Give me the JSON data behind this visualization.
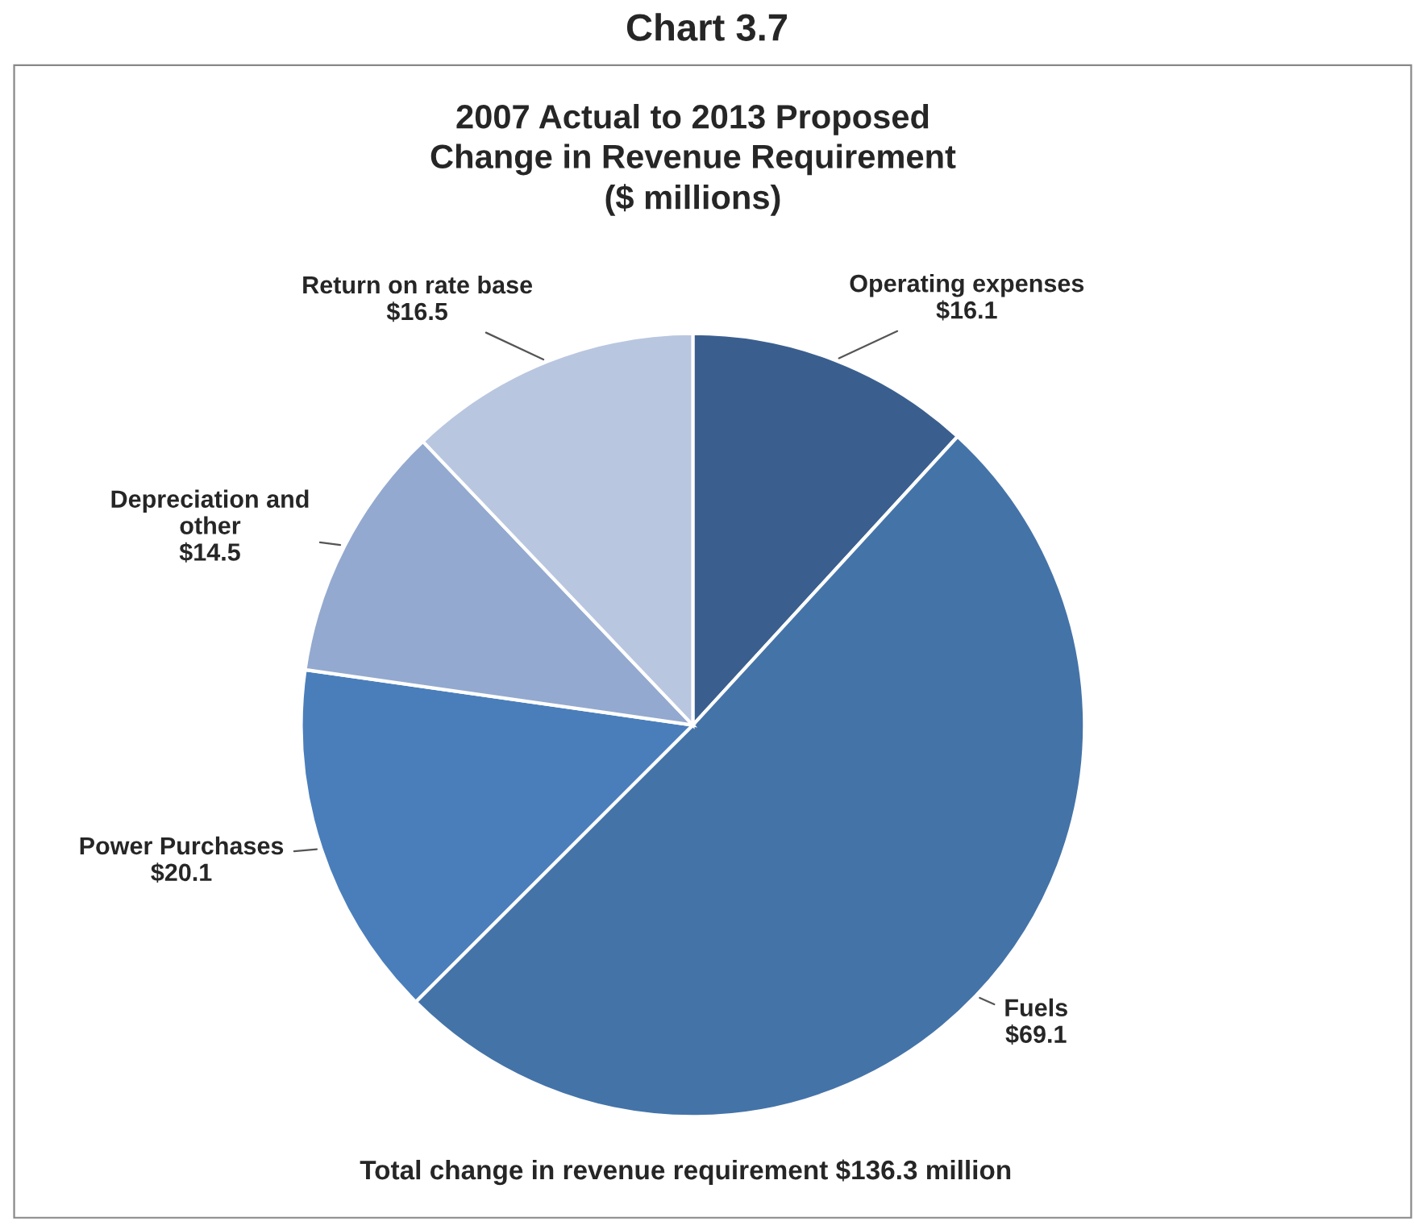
{
  "chart_data": {
    "type": "pie",
    "title": "Chart 3.7",
    "subtitle": "2007 Actual to 2013 Proposed\nChange in Revenue Requirement\n($ millions)",
    "categories": [
      "Operating expenses",
      "Fuels",
      "Power Purchases",
      "Depreciation and\nother",
      "Return on rate base"
    ],
    "values": [
      16.1,
      69.1,
      20.1,
      14.5,
      16.5
    ],
    "value_labels": [
      "$16.1",
      "$69.1",
      "$20.1",
      "$14.5",
      "$16.5"
    ],
    "colors": [
      "#3a5f8f",
      "#4473a8",
      "#4a7ebb",
      "#93a9cf",
      "#b9c6e0"
    ],
    "annotations": [
      "Total change in revenue requirement $136.3 million"
    ]
  }
}
